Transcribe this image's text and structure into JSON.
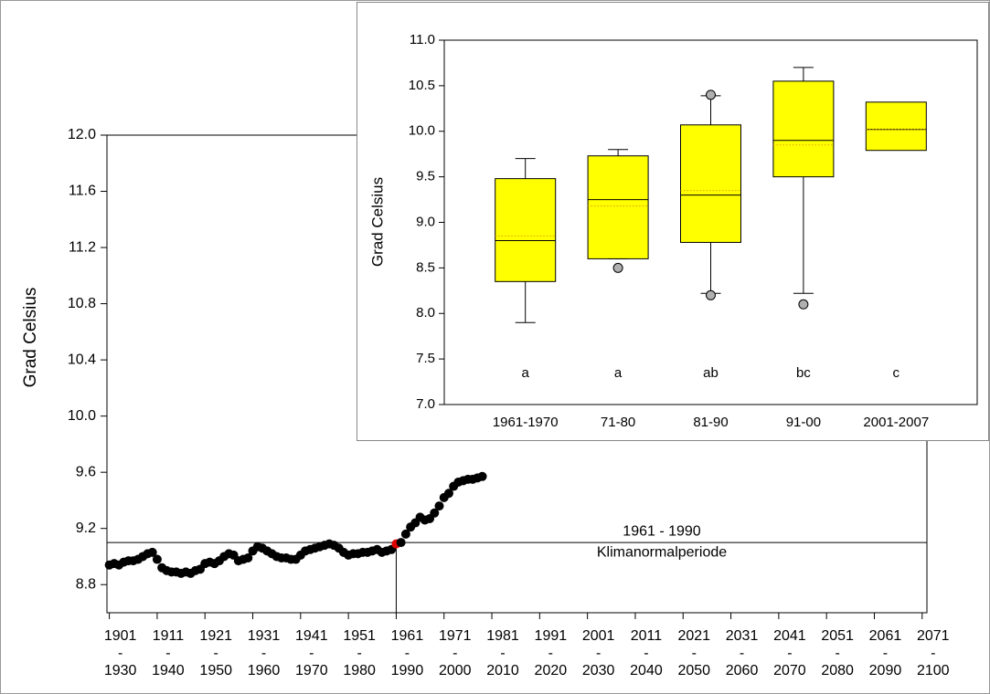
{
  "chart_data": [
    {
      "type": "scatter",
      "y_label": "Grad Celsius",
      "xlim": [
        1900.5,
        2072
      ],
      "ylim": [
        8.6,
        12.0
      ],
      "xticks": [
        {
          "value": 1901,
          "label": "1901\n-\n1930"
        },
        {
          "value": 1911,
          "label": "1911\n-\n1940"
        },
        {
          "value": 1921,
          "label": "1921\n-\n1950"
        },
        {
          "value": 1931,
          "label": "1931\n-\n1960"
        },
        {
          "value": 1941,
          "label": "1941\n-\n1970"
        },
        {
          "value": 1951,
          "label": "1951\n-\n1980"
        },
        {
          "value": 1961,
          "label": "1961\n-\n1990"
        },
        {
          "value": 1971,
          "label": "1971\n-\n2000"
        },
        {
          "value": 1981,
          "label": "1981\n-\n2010"
        },
        {
          "value": 1991,
          "label": "1991\n-\n2020"
        },
        {
          "value": 2001,
          "label": "2001\n-\n2030"
        },
        {
          "value": 2011,
          "label": "2011\n-\n2040"
        },
        {
          "value": 2021,
          "label": "2021\n-\n2050"
        },
        {
          "value": 2031,
          "label": "2031\n-\n2060"
        },
        {
          "value": 2041,
          "label": "2041\n-\n2070"
        },
        {
          "value": 2051,
          "label": "2051\n-\n2080"
        },
        {
          "value": 2061,
          "label": "2061\n-\n2090"
        },
        {
          "value": 2071,
          "label": "2071\n-\n2100"
        }
      ],
      "yticks": [
        {
          "value": 8.8,
          "label": "8.8"
        },
        {
          "value": 9.2,
          "label": "9.2"
        },
        {
          "value": 9.6,
          "label": "9.6"
        },
        {
          "value": 10.0,
          "label": "10.0"
        },
        {
          "value": 10.4,
          "label": "10.4"
        },
        {
          "value": 10.8,
          "label": "10.8"
        },
        {
          "value": 11.2,
          "label": "11.2"
        },
        {
          "value": 11.6,
          "label": "11.6"
        },
        {
          "value": 12.0,
          "label": "12.0"
        }
      ],
      "x": [
        1901,
        1902,
        1903,
        1904,
        1905,
        1906,
        1907,
        1908,
        1909,
        1910,
        1911,
        1912,
        1913,
        1914,
        1915,
        1916,
        1917,
        1918,
        1919,
        1920,
        1921,
        1922,
        1923,
        1924,
        1925,
        1926,
        1927,
        1928,
        1929,
        1930,
        1931,
        1932,
        1933,
        1934,
        1935,
        1936,
        1937,
        1938,
        1939,
        1940,
        1941,
        1942,
        1943,
        1944,
        1945,
        1946,
        1947,
        1948,
        1949,
        1950,
        1951,
        1952,
        1953,
        1954,
        1955,
        1956,
        1957,
        1958,
        1959,
        1960,
        1961,
        1962,
        1963,
        1964,
        1965,
        1966,
        1967,
        1968,
        1969,
        1970,
        1971,
        1972,
        1973,
        1974,
        1975,
        1976,
        1977,
        1978,
        1979
      ],
      "values": [
        8.94,
        8.95,
        8.94,
        8.96,
        8.97,
        8.97,
        8.98,
        9.0,
        9.02,
        9.03,
        8.98,
        8.92,
        8.9,
        8.89,
        8.89,
        8.88,
        8.89,
        8.88,
        8.9,
        8.91,
        8.95,
        8.96,
        8.95,
        8.97,
        9.0,
        9.02,
        9.01,
        8.97,
        8.98,
        8.99,
        9.04,
        9.07,
        9.06,
        9.04,
        9.02,
        9.0,
        8.99,
        8.99,
        8.98,
        8.98,
        9.01,
        9.04,
        9.05,
        9.06,
        9.07,
        9.08,
        9.09,
        9.08,
        9.06,
        9.03,
        9.01,
        9.02,
        9.02,
        9.03,
        9.03,
        9.04,
        9.05,
        9.03,
        9.04,
        9.05,
        9.09,
        9.1,
        9.16,
        9.21,
        9.24,
        9.28,
        9.26,
        9.27,
        9.31,
        9.36,
        9.42,
        9.45,
        9.5,
        9.53,
        9.54,
        9.55,
        9.55,
        9.56,
        9.57
      ],
      "color": "#000000",
      "highlight": {
        "x": 1961,
        "color": "#e00000"
      },
      "reference": {
        "x": 1961,
        "y": 9.1,
        "label": "1961 - 1990",
        "sublabel": "Klimanormalperiode"
      }
    },
    {
      "type": "box",
      "y_label": "Grad Celsius",
      "ylim": [
        7.0,
        11.0
      ],
      "yticks": [
        {
          "value": 7.0,
          "label": "7.0"
        },
        {
          "value": 7.5,
          "label": "7.5"
        },
        {
          "value": 8.0,
          "label": "8.0"
        },
        {
          "value": 8.5,
          "label": "8.5"
        },
        {
          "value": 9.0,
          "label": "9.0"
        },
        {
          "value": 9.5,
          "label": "9.5"
        },
        {
          "value": 10.0,
          "label": "10.0"
        },
        {
          "value": 10.5,
          "label": "10.5"
        },
        {
          "value": 11.0,
          "label": "11.0"
        }
      ],
      "categories": [
        "1961-1970",
        "71-80",
        "81-90",
        "91-00",
        "2001-2007"
      ],
      "whisker_low": [
        7.9,
        8.6,
        8.22,
        8.22,
        null
      ],
      "q1": [
        8.35,
        8.6,
        8.78,
        9.5,
        9.79
      ],
      "median": [
        8.8,
        9.25,
        9.3,
        9.9,
        10.02
      ],
      "mean": [
        8.85,
        9.18,
        9.35,
        9.85,
        10.02
      ],
      "q3": [
        9.48,
        9.73,
        10.07,
        10.55,
        10.32
      ],
      "whisker_high": [
        9.7,
        9.8,
        10.39,
        10.7,
        null
      ],
      "outliers": [
        [],
        [
          8.5
        ],
        [
          10.4,
          8.2
        ],
        [
          8.1
        ],
        []
      ],
      "group_labels": [
        "a",
        "a",
        "ab",
        "bc",
        "c"
      ],
      "color": "#ffff00",
      "mean_color": "#e0a000",
      "outlier_color": "#b0b0b0",
      "group_label_color": "#e00000"
    }
  ]
}
